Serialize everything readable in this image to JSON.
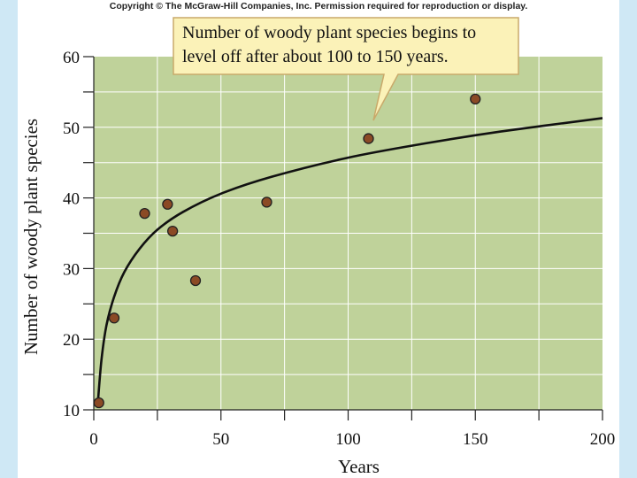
{
  "copyright": "Copyright © The McGraw-Hill Companies, Inc. Permission required for reproduction or display.",
  "colors": {
    "plot_background": "#bfd29a",
    "grid": "#ffffff",
    "point_fill": "#8b4a25",
    "point_stroke": "#222222",
    "curve": "#111111",
    "callout_fill": "#fbf2b8",
    "callout_stroke": "#c9a96a",
    "page_background": "#cfe8f5"
  },
  "chart_data": {
    "type": "scatter",
    "xlabel": "Years",
    "ylabel": "Number of  woody plant species",
    "xlim": [
      0,
      200
    ],
    "ylim": [
      10,
      60
    ],
    "xticks": [
      0,
      50,
      100,
      150,
      200
    ],
    "yticks": [
      10,
      20,
      30,
      40,
      50,
      60
    ],
    "grid": true,
    "points": [
      {
        "x": 2,
        "y": 11
      },
      {
        "x": 8,
        "y": 23
      },
      {
        "x": 20,
        "y": 37.8
      },
      {
        "x": 29,
        "y": 39.1
      },
      {
        "x": 31,
        "y": 35.3
      },
      {
        "x": 40,
        "y": 28.3
      },
      {
        "x": 68,
        "y": 39.4
      },
      {
        "x": 108,
        "y": 48.4
      },
      {
        "x": 150,
        "y": 54
      }
    ],
    "trend_curve": [
      [
        1.5,
        10.5
      ],
      [
        3,
        17
      ],
      [
        5,
        22
      ],
      [
        8,
        26
      ],
      [
        12,
        29.5
      ],
      [
        18,
        32.8
      ],
      [
        25,
        35.5
      ],
      [
        35,
        38
      ],
      [
        50,
        40.6
      ],
      [
        70,
        43
      ],
      [
        100,
        45.7
      ],
      [
        130,
        47.7
      ],
      [
        160,
        49.4
      ],
      [
        200,
        51.3
      ]
    ],
    "annotation": {
      "lines": [
        "Number of woody plant species begins to",
        "level off after about 100 to 150 years."
      ]
    }
  }
}
